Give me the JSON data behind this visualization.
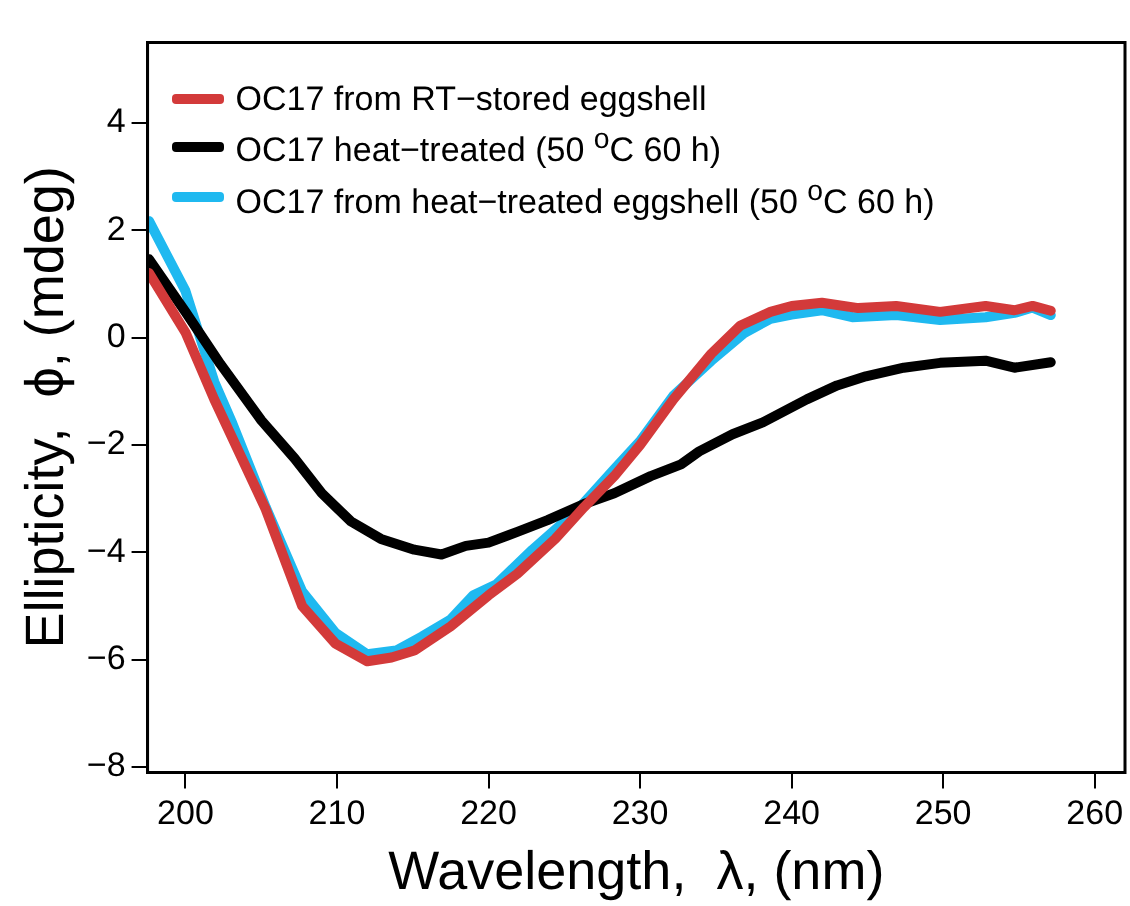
{
  "chart_data": {
    "type": "line",
    "xlabel": "Wavelength,  λ, (nm)",
    "ylabel": "Ellipticity,  ϕ, (mdeg)",
    "xlim": [
      197.5,
      262
    ],
    "xticks": [
      200,
      210,
      220,
      230,
      240,
      250,
      260
    ],
    "ylim": [
      -8.1,
      5.5
    ],
    "yticks": [
      -8,
      -6,
      -4,
      -2,
      0,
      2,
      4
    ],
    "grid": false,
    "legend": "top left",
    "marker": "none",
    "line_style": "solid",
    "series": [
      {
        "name": "OC17 from RT−stored eggshell",
        "color": "#d33a3a",
        "x": [
          197.6,
          200,
          201.9,
          205.3,
          207.7,
          209.9,
          212,
          213.6,
          215.1,
          217.5,
          220,
          221.9,
          224.4,
          226.3,
          228.3,
          230,
          232.2,
          234.7,
          236.6,
          238.6,
          240,
          242,
          244.4,
          246.9,
          249.8,
          252.8,
          254.7,
          255.9,
          257.1
        ],
        "values": [
          1.2,
          0.1,
          -1.15,
          -3.2,
          -5,
          -5.7,
          -6.03,
          -5.96,
          -5.83,
          -5.38,
          -4.8,
          -4.4,
          -3.75,
          -3.16,
          -2.58,
          -2,
          -1.15,
          -0.3,
          0.22,
          0.48,
          0.59,
          0.65,
          0.55,
          0.59,
          0.48,
          0.59,
          0.51,
          0.59,
          0.5
        ]
      },
      {
        "name": "OC17 heat−treated (50 $^{o}$C 60 h)",
        "color": "#000000",
        "x": [
          197.6,
          200,
          202.3,
          205,
          207.2,
          209,
          210.9,
          212.9,
          215.1,
          216.9,
          218.5,
          220,
          221.9,
          223.9,
          226.3,
          228.3,
          230.7,
          232.7,
          233.9,
          236.1,
          238.1,
          241,
          243,
          244.9,
          247.4,
          249.8,
          252.8,
          254.7,
          257.1
        ],
        "values": [
          1.46,
          0.48,
          -0.49,
          -1.54,
          -2.25,
          -2.9,
          -3.42,
          -3.75,
          -3.95,
          -4.04,
          -3.88,
          -3.82,
          -3.62,
          -3.4,
          -3.1,
          -2.9,
          -2.58,
          -2.36,
          -2.12,
          -1.8,
          -1.58,
          -1.15,
          -0.89,
          -0.72,
          -0.56,
          -0.47,
          -0.43,
          -0.56,
          -0.46
        ]
      },
      {
        "name": "OC17 from heat−treated eggshell (50 $^{o}$C 60 h)",
        "color": "#1fb9f0",
        "x": [
          197.6,
          200,
          201.9,
          203.1,
          205.3,
          207.7,
          209.9,
          212,
          213.9,
          215.6,
          217.5,
          219,
          220.5,
          222.9,
          225.8,
          228.3,
          230,
          232.2,
          234.7,
          236.9,
          238.6,
          240,
          242,
          244,
          246.9,
          249.8,
          252.8,
          254.7,
          255.9,
          257.1
        ],
        "values": [
          2.17,
          0.87,
          -0.82,
          -1.6,
          -3.16,
          -4.73,
          -5.5,
          -5.9,
          -5.83,
          -5.57,
          -5.25,
          -4.8,
          -4.6,
          -3.95,
          -3.23,
          -2.45,
          -1.93,
          -1.08,
          -0.43,
          0.09,
          0.35,
          0.43,
          0.51,
          0.38,
          0.42,
          0.33,
          0.38,
          0.46,
          0.56,
          0.42
        ]
      }
    ]
  }
}
